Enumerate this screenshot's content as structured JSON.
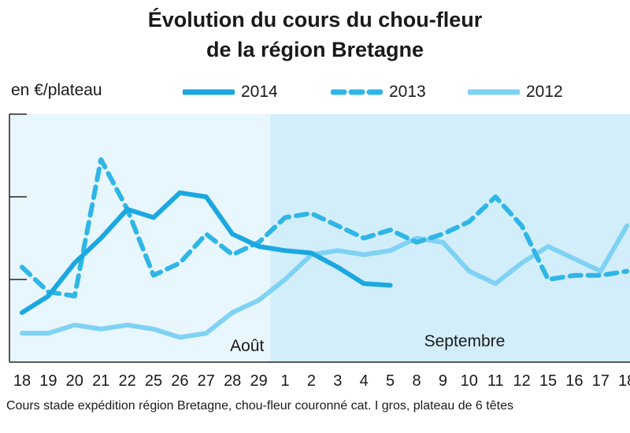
{
  "title_line1": "Évolution du cours du chou-fleur",
  "title_line2": "de la région Bretagne",
  "unit_label": "en €/plateau",
  "footnote": "Cours stade expédition région Bretagne, chou-fleur couronné cat. I gros, plateau de 6 têtes",
  "months": [
    "Août",
    "Septembre"
  ],
  "colors": {
    "s2014": "#1ba8e0",
    "s2013": "#2fb6e6",
    "s2012": "#7fd2f3",
    "bg_aout": "#e8f6fd",
    "bg_sept": "#d2eefb",
    "axis": "#222222"
  },
  "chart_data": {
    "type": "line",
    "title": "Évolution du cours du chou-fleur de la région Bretagne",
    "ylabel": "en €/plateau",
    "ylim": [
      0,
      3
    ],
    "ygrid_ticks": [
      1,
      2,
      3
    ],
    "categories": [
      "18",
      "19",
      "20",
      "21",
      "22",
      "25",
      "26",
      "27",
      "28",
      "29",
      "1",
      "2",
      "3",
      "4",
      "5",
      "8",
      "9",
      "10",
      "11",
      "12",
      "15",
      "16",
      "17",
      "18"
    ],
    "legend_placement": "top",
    "series": [
      {
        "name": "2014",
        "style": "solid",
        "values": [
          0.6,
          0.8,
          1.2,
          1.5,
          1.85,
          1.75,
          2.05,
          2.0,
          1.55,
          1.4,
          1.35,
          1.32,
          1.15,
          0.95,
          0.93,
          null,
          null,
          null,
          null,
          null,
          null,
          null,
          null,
          null
        ]
      },
      {
        "name": "2013",
        "style": "dashed",
        "values": [
          1.15,
          0.85,
          0.8,
          2.45,
          1.85,
          1.05,
          1.2,
          1.55,
          1.3,
          1.45,
          1.75,
          1.8,
          1.65,
          1.5,
          1.6,
          1.45,
          1.55,
          1.7,
          2.0,
          1.65,
          1.0,
          1.05,
          1.05,
          1.1
        ]
      },
      {
        "name": "2012",
        "style": "solid",
        "values": [
          0.35,
          0.35,
          0.45,
          0.4,
          0.45,
          0.4,
          0.3,
          0.35,
          0.6,
          0.75,
          1.0,
          1.3,
          1.35,
          1.3,
          1.35,
          1.5,
          1.45,
          1.1,
          0.95,
          1.2,
          1.4,
          1.25,
          1.1,
          1.65
        ]
      }
    ]
  }
}
